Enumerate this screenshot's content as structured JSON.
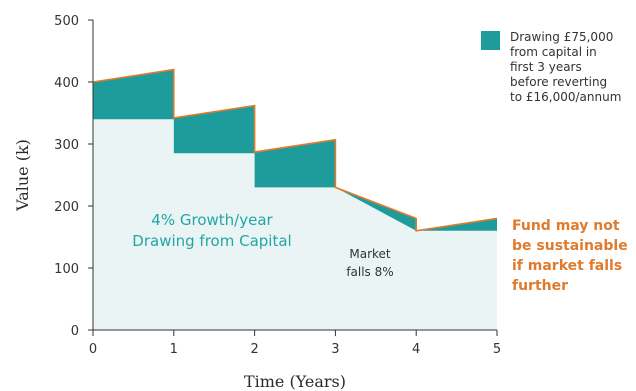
{
  "chart_data": {
    "type": "area",
    "xlabel": "Time (Years)",
    "ylabel": "Value (k)",
    "xlim": [
      0,
      5
    ],
    "ylim": [
      0,
      500
    ],
    "x_ticks": [
      "0",
      "1",
      "2",
      "3",
      "4",
      "5"
    ],
    "y_ticks": [
      "0",
      "100",
      "200",
      "300",
      "400",
      "500"
    ],
    "grid": false,
    "base_value": [
      {
        "x": 0,
        "y": 340
      },
      {
        "x": 1,
        "y": 340
      },
      {
        "x": 1,
        "y": 285
      },
      {
        "x": 2,
        "y": 285
      },
      {
        "x": 2,
        "y": 230
      },
      {
        "x": 3,
        "y": 230
      },
      {
        "x": 4,
        "y": 160
      },
      {
        "x": 5,
        "y": 160
      }
    ],
    "fund_value": [
      {
        "x": 0,
        "y": 400
      },
      {
        "x": 1,
        "y": 420
      },
      {
        "x": 1,
        "y": 342
      },
      {
        "x": 2,
        "y": 362
      },
      {
        "x": 2,
        "y": 287
      },
      {
        "x": 3,
        "y": 307
      },
      {
        "x": 3,
        "y": 230
      },
      {
        "x": 4,
        "y": 180
      },
      {
        "x": 4,
        "y": 160
      },
      {
        "x": 5,
        "y": 180
      }
    ],
    "drawing_bands": [
      {
        "x0": 0,
        "x1": 1,
        "bottom": [
          340,
          340
        ],
        "top": [
          400,
          420
        ]
      },
      {
        "x0": 1,
        "x1": 2,
        "bottom": [
          285,
          285
        ],
        "top": [
          342,
          362
        ]
      },
      {
        "x0": 2,
        "x1": 3,
        "bottom": [
          230,
          230
        ],
        "top": [
          287,
          307
        ]
      },
      {
        "x0": 3,
        "x1": 4,
        "bottom": [
          230,
          160
        ],
        "top": [
          230,
          180
        ]
      },
      {
        "x0": 4,
        "x1": 5,
        "bottom": [
          160,
          160
        ],
        "top": [
          160,
          180
        ]
      }
    ],
    "legend": {
      "position": "top-right",
      "lines": [
        "Drawing £75,000",
        "from capital in",
        "first 3 years",
        "before reverting",
        "to £16,000/annum"
      ]
    },
    "annotations": {
      "growth": [
        "4% Growth/year",
        "Drawing from Capital"
      ],
      "market": [
        "Market",
        "falls 8%"
      ],
      "fund": [
        "Fund may not",
        "be sustainable",
        "if market falls",
        "further"
      ]
    },
    "colors": {
      "drawing": "#1e9c9c",
      "base_fill": "#eaf4f5",
      "outline": "#e07b2e",
      "axis": "#333333",
      "growth_text": "#23a6a6",
      "fund_text": "#e07b2e"
    }
  }
}
